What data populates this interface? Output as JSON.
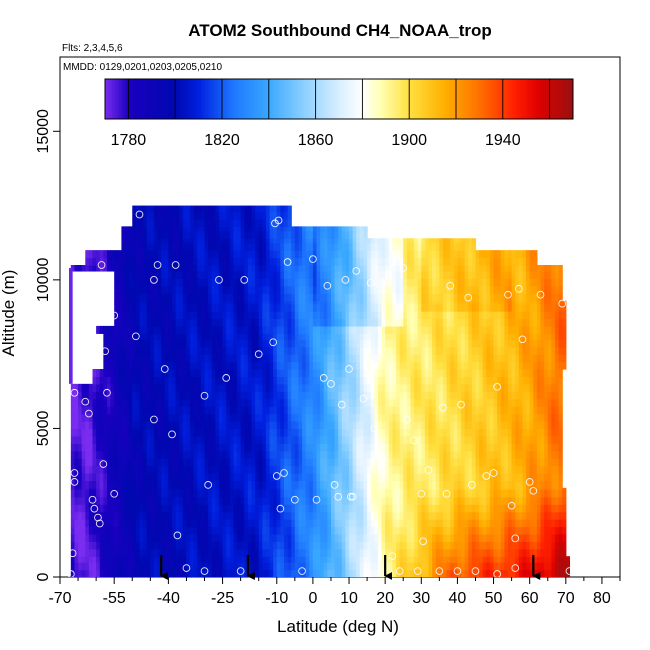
{
  "chart_data": {
    "type": "heatmap",
    "title": "ATOM2 Southbound CH4_NOAA_trop",
    "subtitle_flights": "Flts: 2,3,4,5,6",
    "subtitle_dates": "MMDD: 0129,0201,0203,0205,0210",
    "xlabel": "Latitude (deg N)",
    "ylabel": "Altitude (m)",
    "xlim": [
      -70,
      85
    ],
    "ylim": [
      0,
      17500
    ],
    "x_ticks": [
      -70,
      -55,
      -40,
      -25,
      -10,
      0,
      10,
      20,
      30,
      40,
      50,
      60,
      70,
      80
    ],
    "x_tick_labels": [
      "-70",
      "-55",
      "-40",
      "-25",
      "-10",
      "0",
      "10",
      "20",
      "30",
      "40",
      "50",
      "60",
      "70",
      "80"
    ],
    "x_minor_ticks": [
      -65,
      -60,
      -50,
      -45,
      -35,
      -30,
      -20,
      -15,
      -5,
      5,
      15,
      25,
      35,
      45,
      55,
      65,
      75,
      85
    ],
    "y_ticks": [
      0,
      5000,
      10000,
      15000
    ],
    "y_tick_labels": [
      "0",
      "5000",
      "10000",
      "15000"
    ],
    "colorbar": {
      "min": 1770,
      "max": 1970,
      "ticks": [
        1780,
        1820,
        1860,
        1900,
        1940
      ],
      "tick_labels": [
        "1780",
        "1820",
        "1860",
        "1900",
        "1940"
      ],
      "stops": [
        {
          "v": 1770,
          "c": "#7a2cf0"
        },
        {
          "v": 1780,
          "c": "#1a00c0"
        },
        {
          "v": 1800,
          "c": "#0008b0"
        },
        {
          "v": 1810,
          "c": "#0020e0"
        },
        {
          "v": 1825,
          "c": "#1e78ff"
        },
        {
          "v": 1840,
          "c": "#3aa8ff"
        },
        {
          "v": 1855,
          "c": "#8cd0ff"
        },
        {
          "v": 1870,
          "c": "#d8eeff"
        },
        {
          "v": 1880,
          "c": "#ffffff"
        },
        {
          "v": 1888,
          "c": "#ffffb0"
        },
        {
          "v": 1900,
          "c": "#ffe040"
        },
        {
          "v": 1915,
          "c": "#ffb000"
        },
        {
          "v": 1930,
          "c": "#ff7000"
        },
        {
          "v": 1945,
          "c": "#ff2000"
        },
        {
          "v": 1955,
          "c": "#e00000"
        },
        {
          "v": 1970,
          "c": "#9a1010"
        }
      ]
    },
    "field_model": {
      "description": "latitude-altitude CH4 curtain (ppb)",
      "lat_range": [
        -67,
        72
      ],
      "rows": [
        {
          "alt_bottom": 0,
          "alt_top": 700,
          "lat_min": -67,
          "lat_max": 71
        },
        {
          "alt_bottom": 700,
          "alt_top": 3000,
          "lat_min": -67,
          "lat_max": 70
        },
        {
          "alt_bottom": 3000,
          "alt_top": 6500,
          "lat_min": -67,
          "lat_max": 69
        },
        {
          "alt_bottom": 6500,
          "alt_top": 7000,
          "lat_min": -61,
          "lat_max": 69
        },
        {
          "alt_bottom": 7000,
          "alt_top": 8200,
          "lat_min": -58,
          "lat_max": 70
        },
        {
          "alt_bottom": 8200,
          "alt_top": 9300,
          "lat_min": -60,
          "lat_max": 70
        },
        {
          "alt_bottom": 9300,
          "alt_top": 9800,
          "lat_min": -55,
          "lat_max": 69
        },
        {
          "alt_bottom": 9800,
          "alt_top": 10300,
          "lat_min": -60,
          "lat_max": 69
        },
        {
          "alt_bottom": 10300,
          "alt_top": 10500,
          "lat_min": -67,
          "lat_max": 69
        },
        {
          "alt_bottom": 10500,
          "alt_top": 11000,
          "lat_min": -63,
          "lat_max": 62
        },
        {
          "alt_bottom": 11000,
          "alt_top": 11400,
          "lat_min": -53,
          "lat_max": 45
        },
        {
          "alt_bottom": 11400,
          "alt_top": 11800,
          "lat_min": -53,
          "lat_max": 15
        },
        {
          "alt_bottom": 11800,
          "alt_top": 12500,
          "lat_min": -50,
          "lat_max": -6
        }
      ],
      "notch": {
        "alt_bottom": 8500,
        "alt_top": 10300,
        "lat_min": -67,
        "lat_max": -55
      }
    },
    "sample_points": [
      [
        -67,
        100
      ],
      [
        -66.5,
        800
      ],
      [
        -66,
        3200
      ],
      [
        -66,
        3500
      ],
      [
        -66,
        6200
      ],
      [
        -63,
        5900
      ],
      [
        -62,
        5500
      ],
      [
        -61,
        2600
      ],
      [
        -60.5,
        2300
      ],
      [
        -59.5,
        2000
      ],
      [
        -59,
        1800
      ],
      [
        -58,
        3800
      ],
      [
        -57.5,
        7600
      ],
      [
        -57,
        6200
      ],
      [
        -55,
        2800
      ],
      [
        -56,
        8800
      ],
      [
        -55,
        8800
      ],
      [
        -62,
        9800
      ],
      [
        -58.5,
        10500
      ],
      [
        -54,
        11900
      ],
      [
        -48,
        12200
      ],
      [
        -49,
        8100
      ],
      [
        -44,
        5300
      ],
      [
        -44,
        10000
      ],
      [
        -43,
        10500
      ],
      [
        -41,
        7000
      ],
      [
        -39,
        4800
      ],
      [
        -37.5,
        1400
      ],
      [
        -38,
        10500
      ],
      [
        -35,
        300
      ],
      [
        -30,
        6100
      ],
      [
        -30,
        200
      ],
      [
        -29,
        3100
      ],
      [
        -26,
        10000
      ],
      [
        -24,
        6700
      ],
      [
        -20,
        200
      ],
      [
        -19,
        10000
      ],
      [
        -15,
        7500
      ],
      [
        -10.5,
        11900
      ],
      [
        -9.5,
        12000
      ],
      [
        -11,
        7900
      ],
      [
        -10,
        3400
      ],
      [
        -9,
        2300
      ],
      [
        -8,
        3500
      ],
      [
        -7,
        10600
      ],
      [
        -5,
        2600
      ],
      [
        -3,
        200
      ],
      [
        0,
        10700
      ],
      [
        1,
        2600
      ],
      [
        3,
        6700
      ],
      [
        4,
        9800
      ],
      [
        5,
        6500
      ],
      [
        6,
        3100
      ],
      [
        7,
        2700
      ],
      [
        8,
        5800
      ],
      [
        9,
        10000
      ],
      [
        10,
        7000
      ],
      [
        10.5,
        2700
      ],
      [
        11,
        2700
      ],
      [
        12,
        10300
      ],
      [
        14,
        6000
      ],
      [
        16,
        9900
      ],
      [
        17,
        5000
      ],
      [
        19,
        200
      ],
      [
        21,
        10200
      ],
      [
        22,
        700
      ],
      [
        24,
        200
      ],
      [
        25,
        10400
      ],
      [
        26,
        5300
      ],
      [
        28,
        4600
      ],
      [
        29,
        200
      ],
      [
        30,
        2800
      ],
      [
        30.5,
        1200
      ],
      [
        32,
        3600
      ],
      [
        35,
        200
      ],
      [
        36,
        5700
      ],
      [
        37,
        2800
      ],
      [
        38,
        9800
      ],
      [
        40,
        200
      ],
      [
        41,
        5800
      ],
      [
        43,
        9400
      ],
      [
        44,
        3100
      ],
      [
        45,
        200
      ],
      [
        48,
        3400
      ],
      [
        50,
        3500
      ],
      [
        51,
        6400
      ],
      [
        51,
        100
      ],
      [
        54,
        9500
      ],
      [
        55,
        2400
      ],
      [
        56,
        1300
      ],
      [
        56,
        300
      ],
      [
        57,
        9700
      ],
      [
        58,
        8000
      ],
      [
        60,
        3200
      ],
      [
        61,
        2900
      ],
      [
        63,
        9500
      ],
      [
        69,
        9200
      ],
      [
        71,
        200
      ]
    ],
    "arrow_latitudes": [
      -42,
      -18,
      20,
      61
    ]
  }
}
